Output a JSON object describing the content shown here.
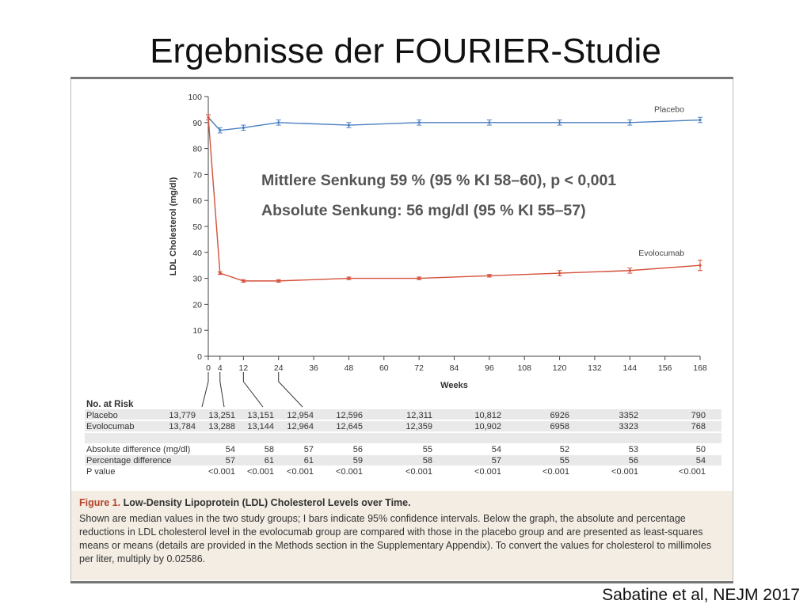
{
  "slide": {
    "title": "Ergebnisse der FOURIER-Studie",
    "citation": "Sabatine et al, NEJM 2017"
  },
  "overlay": {
    "line1": "Mittlere Senkung 59 % (95 % KI 58–60), p < 0,001",
    "line2": "Absolute Senkung: 56 mg/dl (95 % KI 55–57)"
  },
  "chart_data": {
    "type": "line",
    "title": "",
    "xlabel": "Weeks",
    "ylabel": "LDL Cholesterol (mg/dl)",
    "xlim": [
      0,
      168
    ],
    "ylim": [
      0,
      100
    ],
    "x_ticks": [
      0,
      4,
      12,
      24,
      36,
      48,
      60,
      72,
      84,
      96,
      108,
      120,
      132,
      144,
      156,
      168
    ],
    "y_ticks": [
      0,
      10,
      20,
      30,
      40,
      50,
      60,
      70,
      80,
      90,
      100
    ],
    "grid": false,
    "series": [
      {
        "name": "Placebo",
        "color": "#4a7fc1",
        "x": [
          0,
          4,
          12,
          24,
          48,
          72,
          96,
          120,
          144,
          168
        ],
        "y": [
          92,
          87,
          88,
          90,
          89,
          90,
          90,
          90,
          90,
          91
        ],
        "ci": [
          1,
          1,
          1,
          1,
          1,
          1,
          1,
          1,
          1,
          1
        ]
      },
      {
        "name": "Evolocumab",
        "color": "#d4503a",
        "x": [
          0,
          4,
          12,
          24,
          48,
          72,
          96,
          120,
          144,
          168
        ],
        "y": [
          92,
          32,
          29,
          29,
          30,
          30,
          31,
          32,
          33,
          35
        ],
        "ci": [
          1,
          0.5,
          0.5,
          0.5,
          0.5,
          0.5,
          0.5,
          1,
          1,
          2
        ]
      }
    ]
  },
  "risk_table": {
    "header": "No. at Risk",
    "rows": [
      {
        "label": "Placebo",
        "values": [
          "13,779",
          "13,251",
          "13,151",
          "12,954",
          "12,596",
          "12,311",
          "10,812",
          "6926",
          "3352",
          "790"
        ]
      },
      {
        "label": "Evolocumab",
        "values": [
          "13,784",
          "13,288",
          "13,144",
          "12,964",
          "12,645",
          "12,359",
          "10,902",
          "6958",
          "3323",
          "768"
        ]
      }
    ]
  },
  "diff_table": {
    "rows": [
      {
        "label": "Absolute difference (mg/dl)",
        "values": [
          "54",
          "58",
          "57",
          "56",
          "55",
          "54",
          "52",
          "53",
          "50"
        ]
      },
      {
        "label": "Percentage difference",
        "values": [
          "57",
          "61",
          "61",
          "59",
          "58",
          "57",
          "55",
          "56",
          "54"
        ]
      },
      {
        "label": "P value",
        "values": [
          "<0.001",
          "<0.001",
          "<0.001",
          "<0.001",
          "<0.001",
          "<0.001",
          "<0.001",
          "<0.001",
          "<0.001"
        ]
      }
    ]
  },
  "caption": {
    "figure_label": "Figure 1.",
    "title": "Low-Density Lipoprotein (LDL) Cholesterol Levels over Time.",
    "body": "Shown are median values in the two study groups; I bars indicate 95% confidence intervals. Below the graph, the absolute and percentage reductions in LDL cholesterol level in the evolocumab group are compared with those in the placebo group and are presented as least-squares means or means (details are provided in the Methods section in the Supplementary Appendix). To convert the values for cholesterol to millimoles per liter, multiply by 0.02586."
  }
}
